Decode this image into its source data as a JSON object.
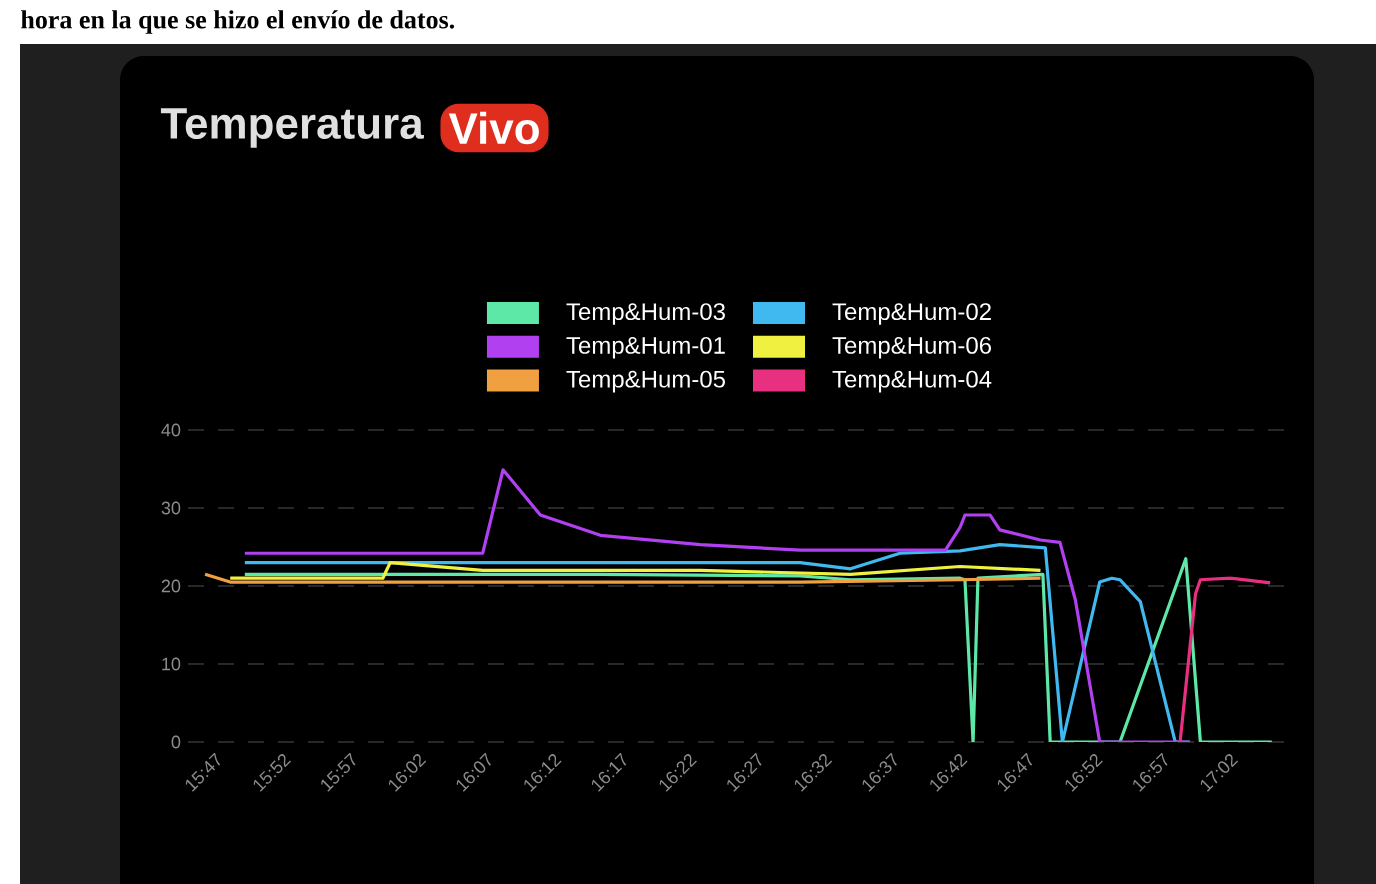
{
  "chart_data": {
    "type": "line",
    "title": "Temperatura",
    "subtitle": "Vivo",
    "annotations": [
      "hora en la que se hizo el envío de datos."
    ],
    "xlim": [
      15.75,
      17.1
    ],
    "ylim": [
      0,
      40
    ],
    "yticks": [
      0,
      10,
      20,
      30,
      40
    ],
    "xticks": [
      {
        "value": 15.7833,
        "label": "15:47"
      },
      {
        "value": 15.8667,
        "label": "15:52"
      },
      {
        "value": 15.95,
        "label": "15:57"
      },
      {
        "value": 16.0333,
        "label": "16:02"
      },
      {
        "value": 16.1167,
        "label": "16:07"
      },
      {
        "value": 16.2,
        "label": "16:12"
      },
      {
        "value": 16.2833,
        "label": "16:17"
      },
      {
        "value": 16.3667,
        "label": "16:22"
      },
      {
        "value": 16.45,
        "label": "16:27"
      },
      {
        "value": 16.5333,
        "label": "16:32"
      },
      {
        "value": 16.6167,
        "label": "16:37"
      },
      {
        "value": 16.7,
        "label": "16:42"
      },
      {
        "value": 16.7833,
        "label": "16:47"
      },
      {
        "value": 16.8667,
        "label": "16:52"
      },
      {
        "value": 16.95,
        "label": "16:57"
      },
      {
        "value": 17.0333,
        "label": "17:02"
      }
    ],
    "grid": "y",
    "legend": "top",
    "series": [
      {
        "name": "Temp&Hum-03",
        "color": "#5ee8a8",
        "x": [
          15.82,
          16.258,
          16.504,
          16.566,
          16.701,
          16.707,
          16.717,
          16.723,
          16.803,
          16.812,
          16.898,
          16.979,
          16.997,
          17.085
        ],
        "values": [
          21.5,
          21.5,
          21.3,
          20.8,
          21,
          20.8,
          0,
          21,
          21.5,
          0,
          0,
          23.5,
          0,
          0
        ]
      },
      {
        "name": "Temp&Hum-02",
        "color": "#40b8f0",
        "x": [
          15.82,
          16.504,
          16.566,
          16.627,
          16.701,
          16.75,
          16.806,
          16.827,
          16.873,
          16.888,
          16.898,
          16.923,
          16.966,
          16.984
        ],
        "values": [
          23,
          23,
          22.2,
          24.2,
          24.5,
          25.3,
          24.9,
          0,
          20.5,
          21,
          20.8,
          18,
          0,
          0
        ]
      },
      {
        "name": "Temp&Hum-01",
        "color": "#b040f0",
        "x": [
          15.82,
          16.113,
          16.138,
          16.184,
          16.258,
          16.381,
          16.504,
          16.627,
          16.683,
          16.701,
          16.707,
          16.738,
          16.75,
          16.8,
          16.824,
          16.843,
          16.873,
          16.972,
          16.984
        ],
        "values": [
          24.2,
          24.2,
          34.9,
          29.1,
          26.5,
          25.3,
          24.6,
          24.6,
          24.6,
          27.5,
          29.1,
          29.1,
          27.2,
          25.9,
          25.6,
          18.2,
          0,
          0,
          0
        ]
      },
      {
        "name": "Temp&Hum-06",
        "color": "#f0f040",
        "x": [
          15.802,
          15.99,
          15.999,
          16.113,
          16.381,
          16.566,
          16.701,
          16.8
        ],
        "values": [
          21,
          21,
          23,
          22,
          22,
          21.5,
          22.5,
          22
        ]
      },
      {
        "name": "Temp&Hum-05",
        "color": "#f0a040",
        "x": [
          15.771,
          15.802,
          16.258,
          16.504,
          16.701,
          16.8
        ],
        "values": [
          21.5,
          20.5,
          20.5,
          20.5,
          20.8,
          21
        ]
      },
      {
        "name": "Temp&Hum-04",
        "color": "#e83080",
        "x": [
          16.972,
          16.991,
          16.997,
          17.034,
          17.083
        ],
        "values": [
          0,
          19,
          20.8,
          21,
          20.4
        ]
      }
    ]
  }
}
